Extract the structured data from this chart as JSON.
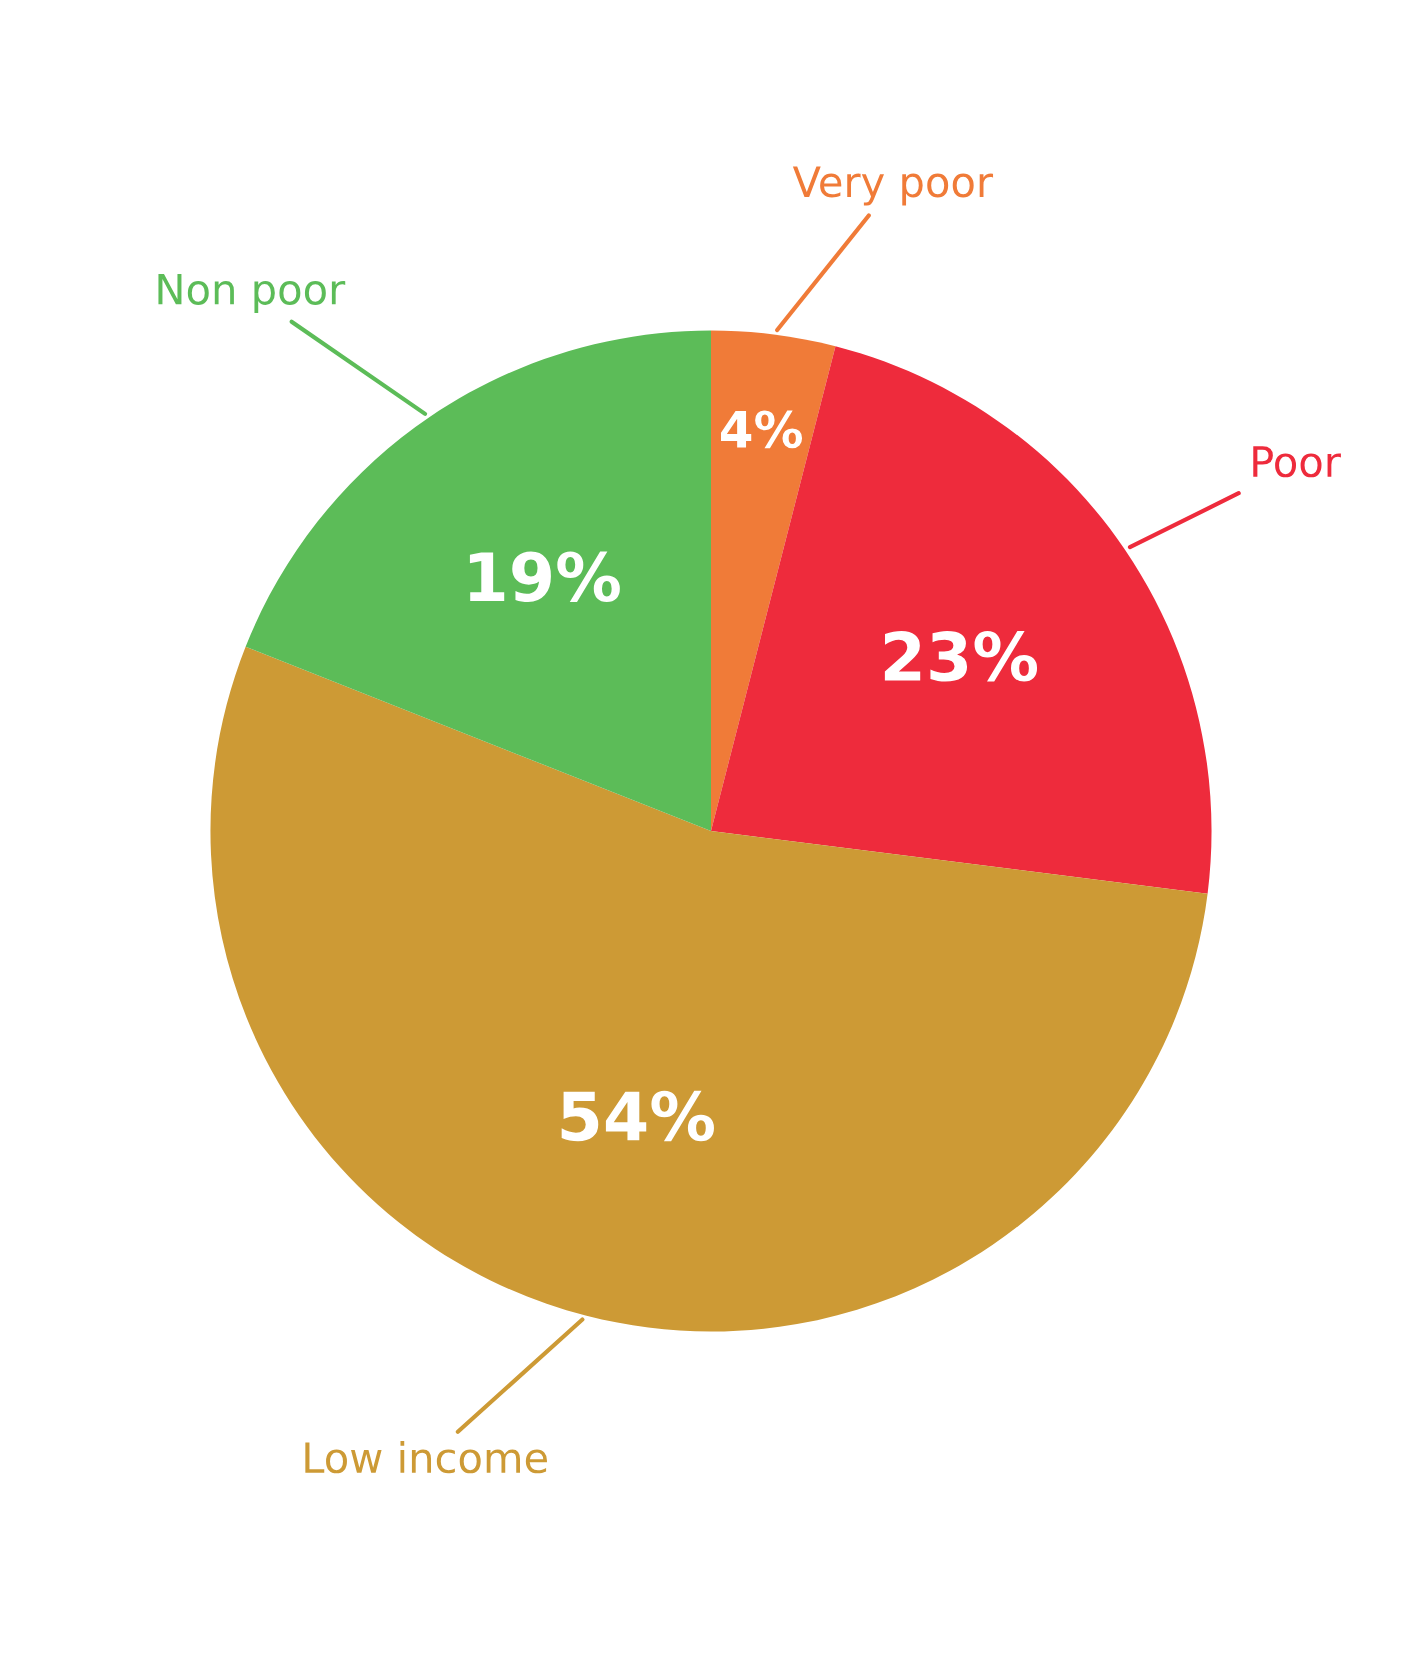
{
  "chart_data": {
    "type": "pie",
    "categories": [
      "Very poor",
      "Poor",
      "Low income",
      "Non poor"
    ],
    "values": [
      4,
      23,
      54,
      19
    ],
    "value_labels": [
      "4%",
      "23%",
      "54%",
      "19%"
    ],
    "colors": [
      "#f07b38",
      "#ee2b3c",
      "#cd9a35",
      "#5cbc58"
    ]
  }
}
